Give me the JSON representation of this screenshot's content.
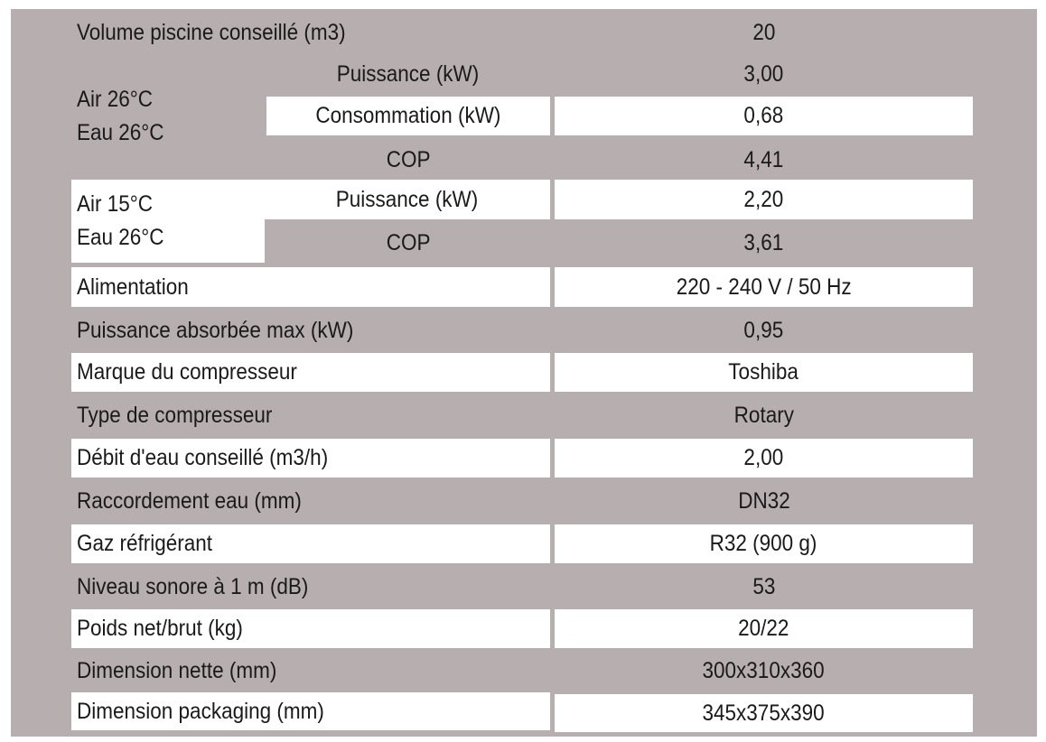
{
  "rows": {
    "volume": {
      "label": "Volume piscine conseillé (m3)",
      "value": "20"
    },
    "cond1": {
      "air": "Air 26°C",
      "eau": "Eau 26°C",
      "puissance": {
        "label": "Puissance (kW)",
        "value": "3,00"
      },
      "consommation": {
        "label": "Consommation (kW)",
        "value": "0,68"
      },
      "cop": {
        "label": "COP",
        "value": "4,41"
      }
    },
    "cond2": {
      "air": "Air 15°C",
      "eau": "Eau 26°C",
      "puissance": {
        "label": "Puissance (kW)",
        "value": "2,20"
      },
      "cop": {
        "label": "COP",
        "value": "3,61"
      }
    },
    "alimentation": {
      "label": "Alimentation",
      "value": "220 - 240 V / 50 Hz"
    },
    "puissance_max": {
      "label": "Puissance absorbée max (kW)",
      "value": "0,95"
    },
    "marque": {
      "label": "Marque du compresseur",
      "value": "Toshiba"
    },
    "type": {
      "label": "Type de compresseur",
      "value": "Rotary"
    },
    "debit": {
      "label": "Débit d'eau conseillé (m3/h)",
      "value": "2,00"
    },
    "raccordement": {
      "label": "Raccordement eau (mm)",
      "value": "DN32"
    },
    "gaz": {
      "label": "Gaz réfrigérant",
      "value": "R32 (900 g)"
    },
    "niveau": {
      "label": "Niveau sonore à 1 m (dB)",
      "value": "53"
    },
    "poids": {
      "label": "Poids net/brut (kg)",
      "value": "20/22"
    },
    "dim_nette": {
      "label": "Dimension nette (mm)",
      "value": "300x310x360"
    },
    "dim_pack": {
      "label": "Dimension packaging (mm)",
      "value": "345x375x390"
    }
  },
  "colors": {
    "grey": "#b7aeaf",
    "white": "#ffffff",
    "text": "#1a1a1a"
  }
}
